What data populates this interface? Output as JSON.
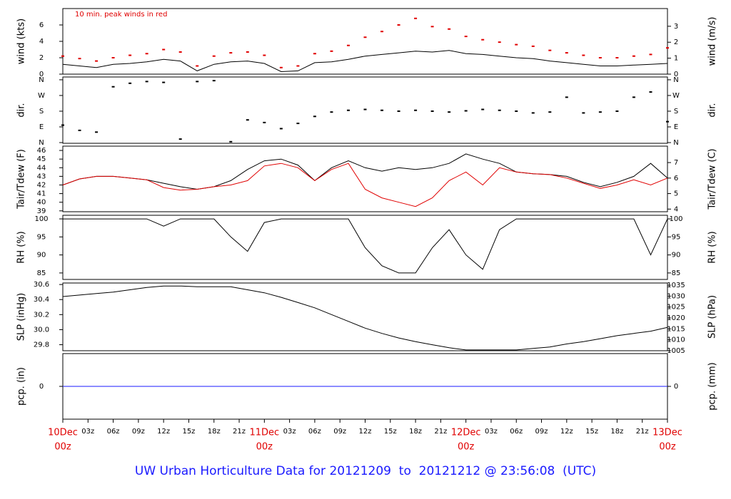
{
  "title": "UW Urban Horticulture Data for 20121209  to  20121212 @ 23:56:08  (UTC)",
  "xaxis": {
    "xlim": [
      0,
      72
    ],
    "xticks": [
      {
        "value": 0,
        "date": "10Dec",
        "label": "00z"
      },
      {
        "value": 3,
        "label": "03z"
      },
      {
        "value": 6,
        "label": "06z"
      },
      {
        "value": 9,
        "label": "09z"
      },
      {
        "value": 12,
        "label": "12z"
      },
      {
        "value": 15,
        "label": "15z"
      },
      {
        "value": 18,
        "label": "18z"
      },
      {
        "value": 21,
        "label": "21z"
      },
      {
        "value": 24,
        "date": "11Dec",
        "label": "00z"
      },
      {
        "value": 27,
        "label": "03z"
      },
      {
        "value": 30,
        "label": "06z"
      },
      {
        "value": 33,
        "label": "09z"
      },
      {
        "value": 36,
        "label": "12z"
      },
      {
        "value": 39,
        "label": "15z"
      },
      {
        "value": 42,
        "label": "18z"
      },
      {
        "value": 45,
        "label": "21z"
      },
      {
        "value": 48,
        "date": "12Dec",
        "label": "00z"
      },
      {
        "value": 51,
        "label": "03z"
      },
      {
        "value": 54,
        "label": "06z"
      },
      {
        "value": 57,
        "label": "09z"
      },
      {
        "value": 60,
        "label": "12z"
      },
      {
        "value": 63,
        "label": "15z"
      },
      {
        "value": 66,
        "label": "18z"
      },
      {
        "value": 69,
        "label": "21z"
      },
      {
        "value": 72,
        "date": "13Dec",
        "label": "00z"
      }
    ]
  },
  "chart_data": [
    {
      "type": "line",
      "ylabel": "wind (kts)",
      "y2label": "wind (m/s)",
      "annotation": "10 min. peak winds in red",
      "ylim": [
        0,
        8
      ],
      "yticks": [
        0,
        2,
        4,
        6
      ],
      "y2lim": [
        0,
        4.11
      ],
      "y2ticks": [
        0,
        1,
        2,
        3
      ],
      "x": [
        0,
        2,
        4,
        6,
        8,
        10,
        12,
        14,
        16,
        18,
        20,
        22,
        24,
        26,
        28,
        30,
        32,
        34,
        36,
        38,
        40,
        42,
        44,
        46,
        48,
        50,
        52,
        54,
        56,
        58,
        60,
        62,
        64,
        66,
        68,
        70,
        72
      ],
      "series": [
        {
          "color": "#000000",
          "style": "line",
          "values": [
            1.2,
            1.0,
            0.8,
            1.2,
            1.3,
            1.5,
            1.8,
            1.6,
            0.4,
            1.2,
            1.5,
            1.6,
            1.3,
            0.3,
            0.4,
            1.4,
            1.5,
            1.8,
            2.2,
            2.4,
            2.6,
            2.8,
            2.7,
            2.9,
            2.5,
            2.4,
            2.2,
            2.0,
            1.9,
            1.6,
            1.4,
            1.2,
            1.0,
            1.0,
            1.1,
            1.2,
            1.3
          ]
        },
        {
          "color": "#e00000",
          "style": "dots",
          "values": [
            2.2,
            1.9,
            1.6,
            2.0,
            2.3,
            2.5,
            3.0,
            2.7,
            1.0,
            2.2,
            2.6,
            2.7,
            2.3,
            0.8,
            1.0,
            2.5,
            2.8,
            3.5,
            4.5,
            5.2,
            6.0,
            6.8,
            5.8,
            5.5,
            4.6,
            4.2,
            3.9,
            3.6,
            3.4,
            2.9,
            2.6,
            2.3,
            2.0,
            2.0,
            2.2,
            2.4,
            3.2
          ]
        }
      ]
    },
    {
      "type": "scatter",
      "ylabel": "dir.",
      "y2label": "dir.",
      "ylim": [
        -4,
        376
      ],
      "yticks": [
        {
          "value": 0,
          "label": "N"
        },
        {
          "value": 90,
          "label": "E"
        },
        {
          "value": 180,
          "label": "S"
        },
        {
          "value": 270,
          "label": "W"
        },
        {
          "value": 360,
          "label": "N"
        }
      ],
      "y2lim": [
        -4,
        376
      ],
      "y2ticks": [
        {
          "value": 0,
          "label": "N"
        },
        {
          "value": 90,
          "label": "E"
        },
        {
          "value": 180,
          "label": "S"
        },
        {
          "value": 270,
          "label": "W"
        },
        {
          "value": 360,
          "label": "N"
        }
      ],
      "x": [
        0,
        2,
        4,
        6,
        8,
        10,
        12,
        14,
        16,
        18,
        20,
        22,
        24,
        26,
        28,
        30,
        32,
        34,
        36,
        38,
        40,
        42,
        44,
        46,
        48,
        50,
        52,
        54,
        56,
        58,
        60,
        62,
        64,
        66,
        68,
        70,
        72
      ],
      "series": [
        {
          "color": "#000000",
          "style": "dots",
          "values": [
            100,
            70,
            60,
            320,
            340,
            350,
            345,
            20,
            350,
            355,
            5,
            130,
            115,
            80,
            110,
            150,
            175,
            185,
            190,
            185,
            180,
            185,
            180,
            175,
            182,
            190,
            185,
            180,
            170,
            175,
            260,
            170,
            175,
            180,
            260,
            290,
            120
          ]
        }
      ]
    },
    {
      "type": "line",
      "ylabel": "Tair/Tdew (F)",
      "y2label": "Tair/Tdew (C)",
      "ylim": [
        38.9,
        46.5
      ],
      "yticks": [
        39,
        40,
        41,
        42,
        43,
        44,
        45,
        46
      ],
      "y2lim": [
        3.83,
        8.06
      ],
      "y2ticks": [
        4,
        5,
        6,
        7
      ],
      "x": [
        0,
        2,
        4,
        6,
        8,
        10,
        12,
        14,
        16,
        18,
        20,
        22,
        24,
        26,
        28,
        30,
        32,
        34,
        36,
        38,
        40,
        42,
        44,
        46,
        48,
        50,
        52,
        54,
        56,
        58,
        60,
        62,
        64,
        66,
        68,
        70,
        72
      ],
      "series": [
        {
          "color": "#000000",
          "style": "line",
          "values": [
            42,
            42.7,
            43,
            43,
            42.8,
            42.6,
            42.2,
            41.8,
            41.5,
            41.8,
            42.5,
            43.8,
            44.8,
            45.0,
            44.3,
            42.5,
            44.0,
            44.8,
            44.0,
            43.6,
            44.0,
            43.8,
            44.0,
            44.5,
            45.6,
            45.0,
            44.5,
            43.5,
            43.3,
            43.2,
            43.0,
            42.3,
            41.8,
            42.3,
            43.0,
            44.5,
            42.8
          ]
        },
        {
          "color": "#e00000",
          "style": "line",
          "values": [
            42,
            42.7,
            43,
            43,
            42.8,
            42.6,
            41.7,
            41.4,
            41.5,
            41.8,
            42,
            42.5,
            44.2,
            44.5,
            44.0,
            42.5,
            43.8,
            44.5,
            41.5,
            40.5,
            40.0,
            39.5,
            40.5,
            42.5,
            43.5,
            42.0,
            44.0,
            43.5,
            43.3,
            43.2,
            42.8,
            42.2,
            41.6,
            42.0,
            42.6,
            42.0,
            42.8
          ]
        }
      ]
    },
    {
      "type": "line",
      "ylabel": "RH (%)",
      "y2label": "RH (%)",
      "ylim": [
        83.2,
        101
      ],
      "yticks": [
        85,
        90,
        95,
        100
      ],
      "y2lim": [
        83.2,
        101
      ],
      "y2ticks": [
        85,
        90,
        95,
        100
      ],
      "x": [
        0,
        2,
        4,
        6,
        8,
        10,
        12,
        14,
        16,
        18,
        20,
        22,
        24,
        26,
        28,
        30,
        32,
        34,
        36,
        38,
        40,
        42,
        44,
        46,
        48,
        50,
        52,
        54,
        56,
        58,
        60,
        62,
        64,
        66,
        68,
        70,
        72
      ],
      "series": [
        {
          "color": "#000000",
          "style": "line",
          "values": [
            100,
            100,
            100,
            100,
            100,
            100,
            98,
            100,
            100,
            100,
            95,
            91,
            99,
            100,
            100,
            100,
            100,
            100,
            92,
            87,
            85,
            85,
            92,
            97,
            90,
            86,
            97,
            100,
            100,
            100,
            100,
            100,
            100,
            100,
            100,
            90,
            100
          ]
        }
      ]
    },
    {
      "type": "line",
      "ylabel": "SLP (inHg)",
      "y2label": "SLP (hPa)",
      "ylim": [
        29.72,
        30.62
      ],
      "yticks": [
        29.8,
        {
          "value": 30,
          "label": "30.0"
        },
        30.2,
        30.4,
        30.6
      ],
      "y2lim": [
        1005,
        1036
      ],
      "y2ticks": [
        1005,
        1010,
        1015,
        1020,
        1025,
        1030,
        1035
      ],
      "x": [
        0,
        2,
        4,
        6,
        8,
        10,
        12,
        14,
        16,
        18,
        20,
        22,
        24,
        26,
        28,
        30,
        32,
        34,
        36,
        38,
        40,
        42,
        44,
        46,
        48,
        50,
        52,
        54,
        56,
        58,
        60,
        62,
        64,
        66,
        68,
        70,
        72
      ],
      "series": [
        {
          "color": "#000000",
          "style": "line",
          "values": [
            30.44,
            30.46,
            30.48,
            30.5,
            30.53,
            30.56,
            30.58,
            30.58,
            30.57,
            30.57,
            30.57,
            30.53,
            30.49,
            30.43,
            30.36,
            30.29,
            30.2,
            30.11,
            30.02,
            29.95,
            29.89,
            29.84,
            29.8,
            29.76,
            29.73,
            29.73,
            29.73,
            29.73,
            29.75,
            29.77,
            29.81,
            29.84,
            29.88,
            29.92,
            29.95,
            29.98,
            30.03
          ]
        }
      ]
    },
    {
      "type": "line",
      "ylabel": "pcp. (in)",
      "y2label": "pcp. (mm)",
      "ylim": [
        -1,
        1
      ],
      "yticks": [
        0
      ],
      "y2lim": [
        -25.4,
        25.4
      ],
      "y2ticks": [
        0
      ],
      "x": [
        0,
        2,
        4,
        6,
        8,
        10,
        12,
        14,
        16,
        18,
        20,
        22,
        24,
        26,
        28,
        30,
        32,
        34,
        36,
        38,
        40,
        42,
        44,
        46,
        48,
        50,
        52,
        54,
        56,
        58,
        60,
        62,
        64,
        66,
        68,
        70,
        72
      ],
      "series": [
        {
          "color": "#1a1aff",
          "style": "line",
          "values": [
            0,
            0,
            0,
            0,
            0,
            0,
            0,
            0,
            0,
            0,
            0,
            0,
            0,
            0,
            0,
            0,
            0,
            0,
            0,
            0,
            0,
            0,
            0,
            0,
            0,
            0,
            0,
            0,
            0,
            0,
            0,
            0,
            0,
            0,
            0,
            0,
            0
          ]
        }
      ]
    }
  ]
}
